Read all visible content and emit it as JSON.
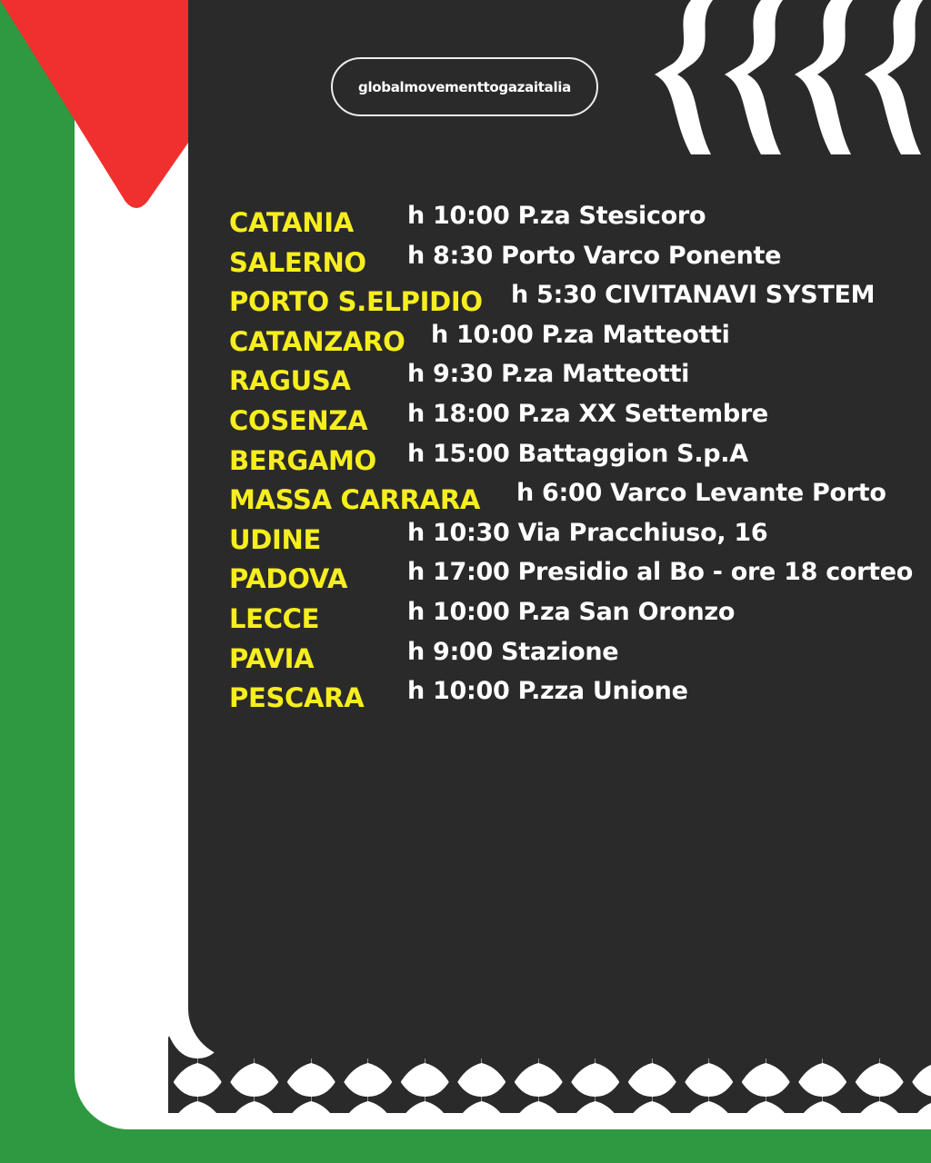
{
  "handle": "globalmovementtogazaitalia",
  "colors": {
    "green": "#2e9940",
    "red": "#f0302f",
    "dark": "#2b2a2b",
    "yellow": "#f6ee1e",
    "white": "#ffffff"
  },
  "events": [
    {
      "city": "CATANIA",
      "detail": "h 10:00 P.za Stesicoro"
    },
    {
      "city": "SALERNO",
      "detail": "h 8:30 Porto Varco Ponente"
    },
    {
      "city": "PORTO S.ELPIDIO",
      "detail": "h 5:30 CIVITANAVI SYSTEM"
    },
    {
      "city": "CATANZARO",
      "detail": "h 10:00 P.za Matteotti"
    },
    {
      "city": "RAGUSA",
      "detail": "h 9:30 P.za Matteotti"
    },
    {
      "city": "COSENZA",
      "detail": "h 18:00 P.za XX Settembre"
    },
    {
      "city": "BERGAMO",
      "detail": "h 15:00 Battaggion S.p.A"
    },
    {
      "city": "MASSA CARRARA",
      "detail": "h 6:00 Varco Levante Porto"
    },
    {
      "city": "UDINE",
      "detail": "h 10:30 Via Pracchiuso, 16"
    },
    {
      "city": "PADOVA",
      "detail": "h 17:00 Presidio al Bo - ore 18 corteo"
    },
    {
      "city": "LECCE",
      "detail": "h 10:00 P.za San Oronzo"
    },
    {
      "city": "PAVIA",
      "detail": "h 9:00 Stazione"
    },
    {
      "city": "PESCARA",
      "detail": "h 10:00 P.zza Unione"
    }
  ]
}
